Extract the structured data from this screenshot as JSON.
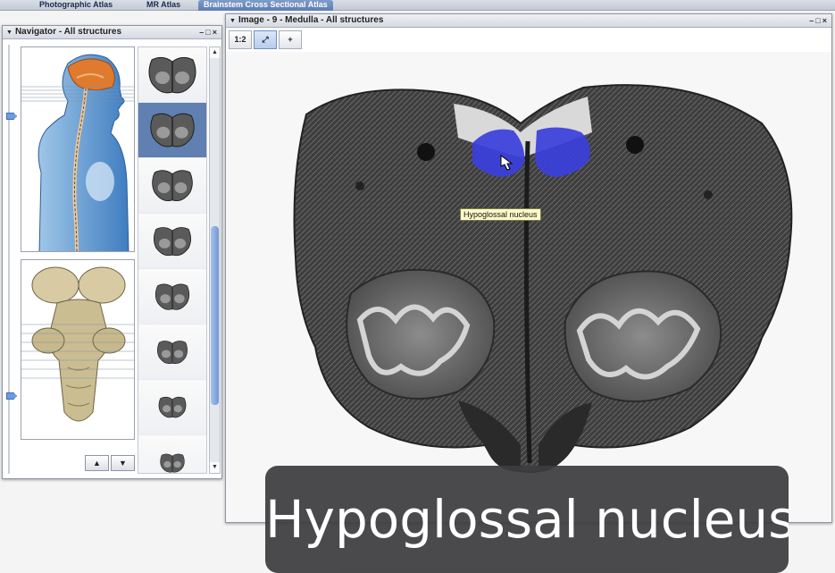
{
  "top_tabs": [
    {
      "label": "Photographic Atlas",
      "active": false
    },
    {
      "label": "MR Atlas",
      "active": false
    },
    {
      "label": "Brainstem Cross Sectional Atlas",
      "active": true
    }
  ],
  "navigator": {
    "title": "Navigator - All structures",
    "window_controls": "–□×",
    "thumbnail_count": 8,
    "selected_thumbnail": 2
  },
  "image_window": {
    "title": "Image - 9 - Medulla - All structures",
    "window_controls": "–□×",
    "tools": [
      {
        "name": "zoom-tool",
        "label": "1:2"
      },
      {
        "name": "fit-tool",
        "label": "⤢"
      },
      {
        "name": "crosshair-tool",
        "label": "+"
      }
    ]
  },
  "highlight": {
    "structure": "Hypoglossal nucleus",
    "color": "#3b3fdc"
  },
  "tooltip": {
    "text": "Hypoglossal nucleus"
  },
  "caption": {
    "text": "Hypoglossal nucleus"
  },
  "colors": {
    "accent": "#5b7db5",
    "highlight": "#3b3fdc",
    "tooltip_bg": "#fdfbc8"
  }
}
